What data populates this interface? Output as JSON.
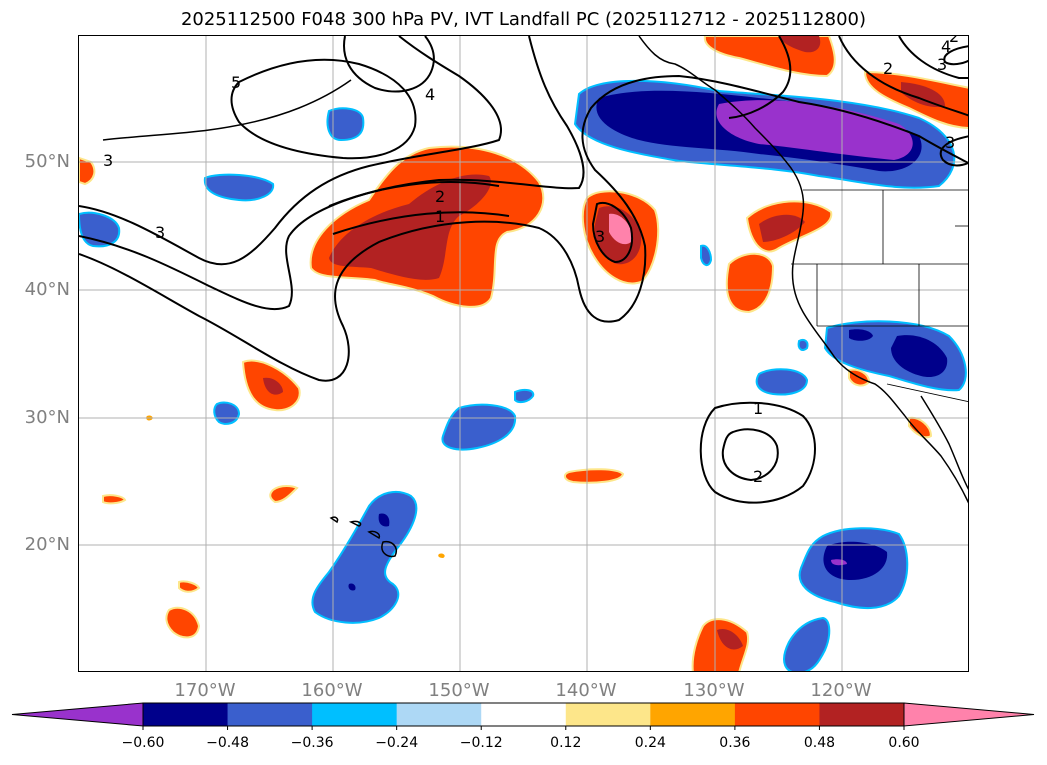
{
  "title": "2025112500 F048 300 hPa PV, IVT Landfall PC (2025112712 - 2025112800)",
  "lat_labels": [
    "50°N",
    "40°N",
    "30°N",
    "20°N"
  ],
  "lon_labels": [
    "170°W",
    "160°W",
    "150°W",
    "140°W",
    "130°W",
    "120°W"
  ],
  "contour_labels": [
    "5",
    "4",
    "3",
    "3",
    "2",
    "1",
    "3",
    "2",
    "3",
    "1",
    "2",
    "4",
    "3",
    "2"
  ],
  "colorbar": {
    "ticks": [
      "−0.60",
      "−0.48",
      "−0.36",
      "−0.24",
      "−0.12",
      "0.12",
      "0.24",
      "0.36",
      "0.48",
      "0.60"
    ],
    "colors": [
      "#9932cc",
      "#00008b",
      "#3a5fcd",
      "#00bfff",
      "#add8f5",
      "#ffffff",
      "#fde68a",
      "#ffa500",
      "#ff4500",
      "#b22222",
      "#ff82ab"
    ]
  },
  "colors": {
    "gridline": "#b0b0b0",
    "contour": "#000000",
    "tick_label": "#808080"
  }
}
